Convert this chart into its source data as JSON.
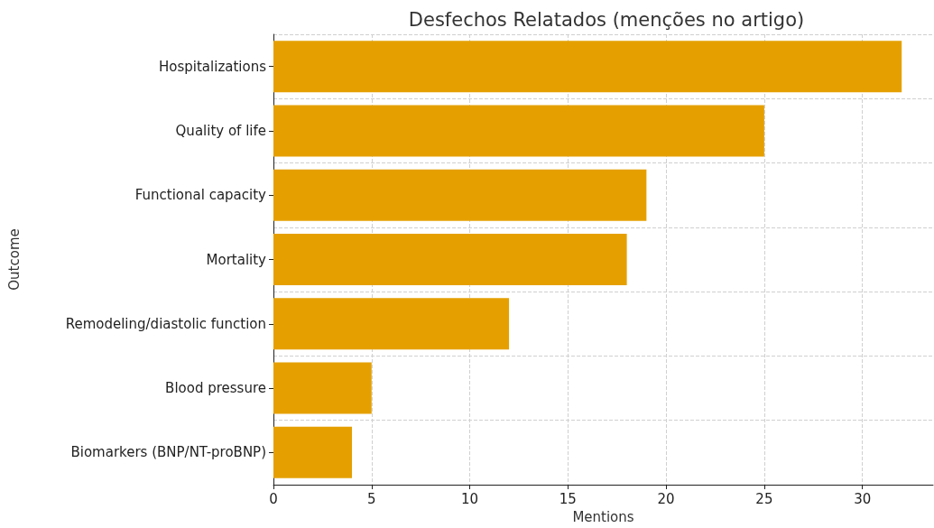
{
  "chart_data": {
    "type": "bar",
    "orientation": "horizontal",
    "title": "Desfechos Relatados (menções no artigo)",
    "xlabel": "Mentions",
    "ylabel": "Outcome",
    "categories": [
      "Hospitalizations",
      "Quality of life",
      "Functional capacity",
      "Mortality",
      "Remodeling/diastolic function",
      "Blood pressure",
      "Biomarkers (BNP/NT-proBNP)"
    ],
    "values": [
      32,
      25,
      19,
      18,
      12,
      5,
      4
    ],
    "color": "#e5a000",
    "xlim": [
      0,
      33.6
    ],
    "xticks": [
      0,
      5,
      10,
      15,
      20,
      25,
      30
    ],
    "grid": true
  }
}
